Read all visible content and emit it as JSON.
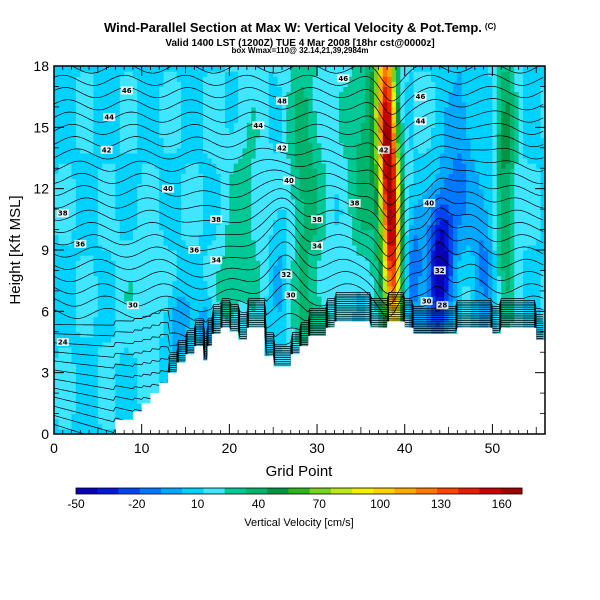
{
  "header": {
    "title": "Wind-Parallel Section at Max W: Vertical Velocity & Pot.Temp.",
    "title_suffix": "(C)",
    "subtitle_line1": "Valid 1400 LST (1200Z) TUE 4 Mar 2008 [18hr cst@0000z]",
    "subtitle_line2": "box Wmax=110@ 32.14,21,39,2984m"
  },
  "chart_data": {
    "type": "heatmap",
    "title": "Wind-Parallel Section at Max W: Vertical Velocity & Pot.Temp.",
    "xlabel": "Grid Point",
    "ylabel": "Height [Kft MSL]",
    "xlim": [
      0,
      56
    ],
    "ylim": [
      0,
      18
    ],
    "x_ticks": [
      0,
      10,
      20,
      30,
      40,
      50
    ],
    "y_ticks": [
      0,
      3,
      6,
      9,
      12,
      15,
      18
    ],
    "colorbar": {
      "label": "Vertical Velocity [cm/s]",
      "tick_labels": [
        -50,
        -20,
        10,
        40,
        70,
        100,
        130,
        160
      ],
      "range": [
        -50,
        170
      ],
      "colors": [
        "#0a00b4",
        "#0018d8",
        "#0046f0",
        "#0078ff",
        "#00a8ff",
        "#00d2ff",
        "#40e6ff",
        "#00c896",
        "#00b46e",
        "#009646",
        "#2db41e",
        "#78d21e",
        "#bee61e",
        "#f0f000",
        "#ffd200",
        "#ffaa00",
        "#ff7800",
        "#ff4600",
        "#e61e00",
        "#c80000",
        "#a00000"
      ]
    },
    "terrain_profile": {
      "x": [
        0,
        7,
        7,
        9,
        9,
        10,
        10,
        11,
        11,
        12,
        12,
        13,
        13,
        14,
        14,
        15,
        15,
        16,
        16,
        17,
        17,
        17.5,
        17.5,
        18,
        18,
        19,
        19,
        20,
        20,
        21,
        21,
        22,
        22,
        24,
        24,
        25,
        25,
        27,
        27,
        28,
        28,
        29,
        29,
        31,
        31,
        32,
        32,
        36,
        36,
        38,
        38,
        40,
        40,
        41,
        41,
        46,
        46,
        50,
        50,
        51,
        51,
        55,
        55,
        56
      ],
      "y": [
        0,
        0,
        0.7,
        0.7,
        1.1,
        1.1,
        1.5,
        1.5,
        2.0,
        2.0,
        2.5,
        2.5,
        3.0,
        3.0,
        3.5,
        3.5,
        3.9,
        3.9,
        4.3,
        4.3,
        3.6,
        3.6,
        4.3,
        4.3,
        4.9,
        4.9,
        5.2,
        5.2,
        5.0,
        5.0,
        4.6,
        4.6,
        5.2,
        5.2,
        3.8,
        3.8,
        3.3,
        3.3,
        3.9,
        3.9,
        4.3,
        4.3,
        4.8,
        4.8,
        5.2,
        5.2,
        5.5,
        5.5,
        5.2,
        5.2,
        5.5,
        5.5,
        5.2,
        5.2,
        4.9,
        4.9,
        5.2,
        5.2,
        4.9,
        4.9,
        5.2,
        5.2,
        4.6,
        4.6
      ]
    },
    "contour_labels": [
      {
        "text": "46",
        "x": 33.0,
        "y": 17.4
      },
      {
        "text": "46",
        "x": 8.3,
        "y": 16.8
      },
      {
        "text": "46",
        "x": 41.8,
        "y": 16.5
      },
      {
        "text": "48",
        "x": 26.0,
        "y": 16.3
      },
      {
        "text": "44",
        "x": 6.3,
        "y": 15.5
      },
      {
        "text": "44",
        "x": 23.3,
        "y": 15.1
      },
      {
        "text": "44",
        "x": 41.8,
        "y": 15.3
      },
      {
        "text": "42",
        "x": 6.0,
        "y": 13.9
      },
      {
        "text": "42",
        "x": 26.0,
        "y": 14.0
      },
      {
        "text": "42",
        "x": 37.6,
        "y": 13.9
      },
      {
        "text": "40",
        "x": 13.0,
        "y": 12.0
      },
      {
        "text": "40",
        "x": 26.8,
        "y": 12.4
      },
      {
        "text": "40",
        "x": 42.8,
        "y": 11.3
      },
      {
        "text": "38",
        "x": 1.0,
        "y": 10.8
      },
      {
        "text": "38",
        "x": 18.5,
        "y": 10.5
      },
      {
        "text": "38",
        "x": 30.0,
        "y": 10.5
      },
      {
        "text": "38",
        "x": 34.3,
        "y": 11.3
      },
      {
        "text": "36",
        "x": 3.0,
        "y": 9.3
      },
      {
        "text": "36",
        "x": 16.0,
        "y": 9.0
      },
      {
        "text": "34",
        "x": 30.0,
        "y": 9.2
      },
      {
        "text": "34",
        "x": 18.5,
        "y": 8.5
      },
      {
        "text": "32",
        "x": 26.5,
        "y": 7.8
      },
      {
        "text": "32",
        "x": 44.0,
        "y": 8.0
      },
      {
        "text": "30",
        "x": 9.0,
        "y": 6.3
      },
      {
        "text": "30",
        "x": 27.0,
        "y": 6.8
      },
      {
        "text": "30",
        "x": 42.5,
        "y": 6.5
      },
      {
        "text": "28",
        "x": 44.3,
        "y": 6.3
      },
      {
        "text": "24",
        "x": 1.0,
        "y": 4.5
      }
    ]
  }
}
